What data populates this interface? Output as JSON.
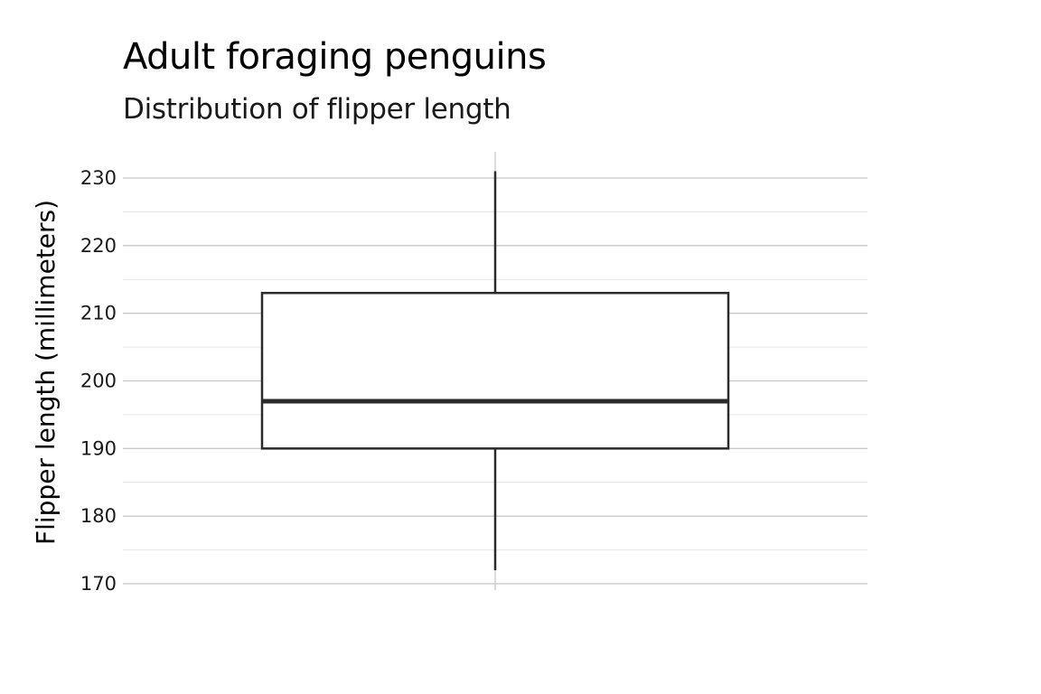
{
  "chart_data": {
    "type": "boxplot",
    "title": "Adult foraging penguins",
    "subtitle": "Distribution of flipper length",
    "xlabel": "",
    "ylabel": "Flipper length (millimeters)",
    "ylim": [
      170,
      231
    ],
    "y_ticks": [
      "170",
      "180",
      "190",
      "200",
      "210",
      "220",
      "230"
    ],
    "y_tick_values": [
      170,
      180,
      190,
      200,
      210,
      220,
      230
    ],
    "y_minor_values": [
      175,
      185,
      195,
      205,
      215,
      225
    ],
    "grid": true,
    "legend": "none",
    "box": {
      "min": 172,
      "q1": 190,
      "median": 197,
      "q3": 213,
      "max": 231
    },
    "colors": {
      "box_stroke": "#2b2b2b",
      "box_fill": "#ffffff",
      "grid_major": "#c8c8c8",
      "grid_minor": "#e6e6e6"
    }
  }
}
